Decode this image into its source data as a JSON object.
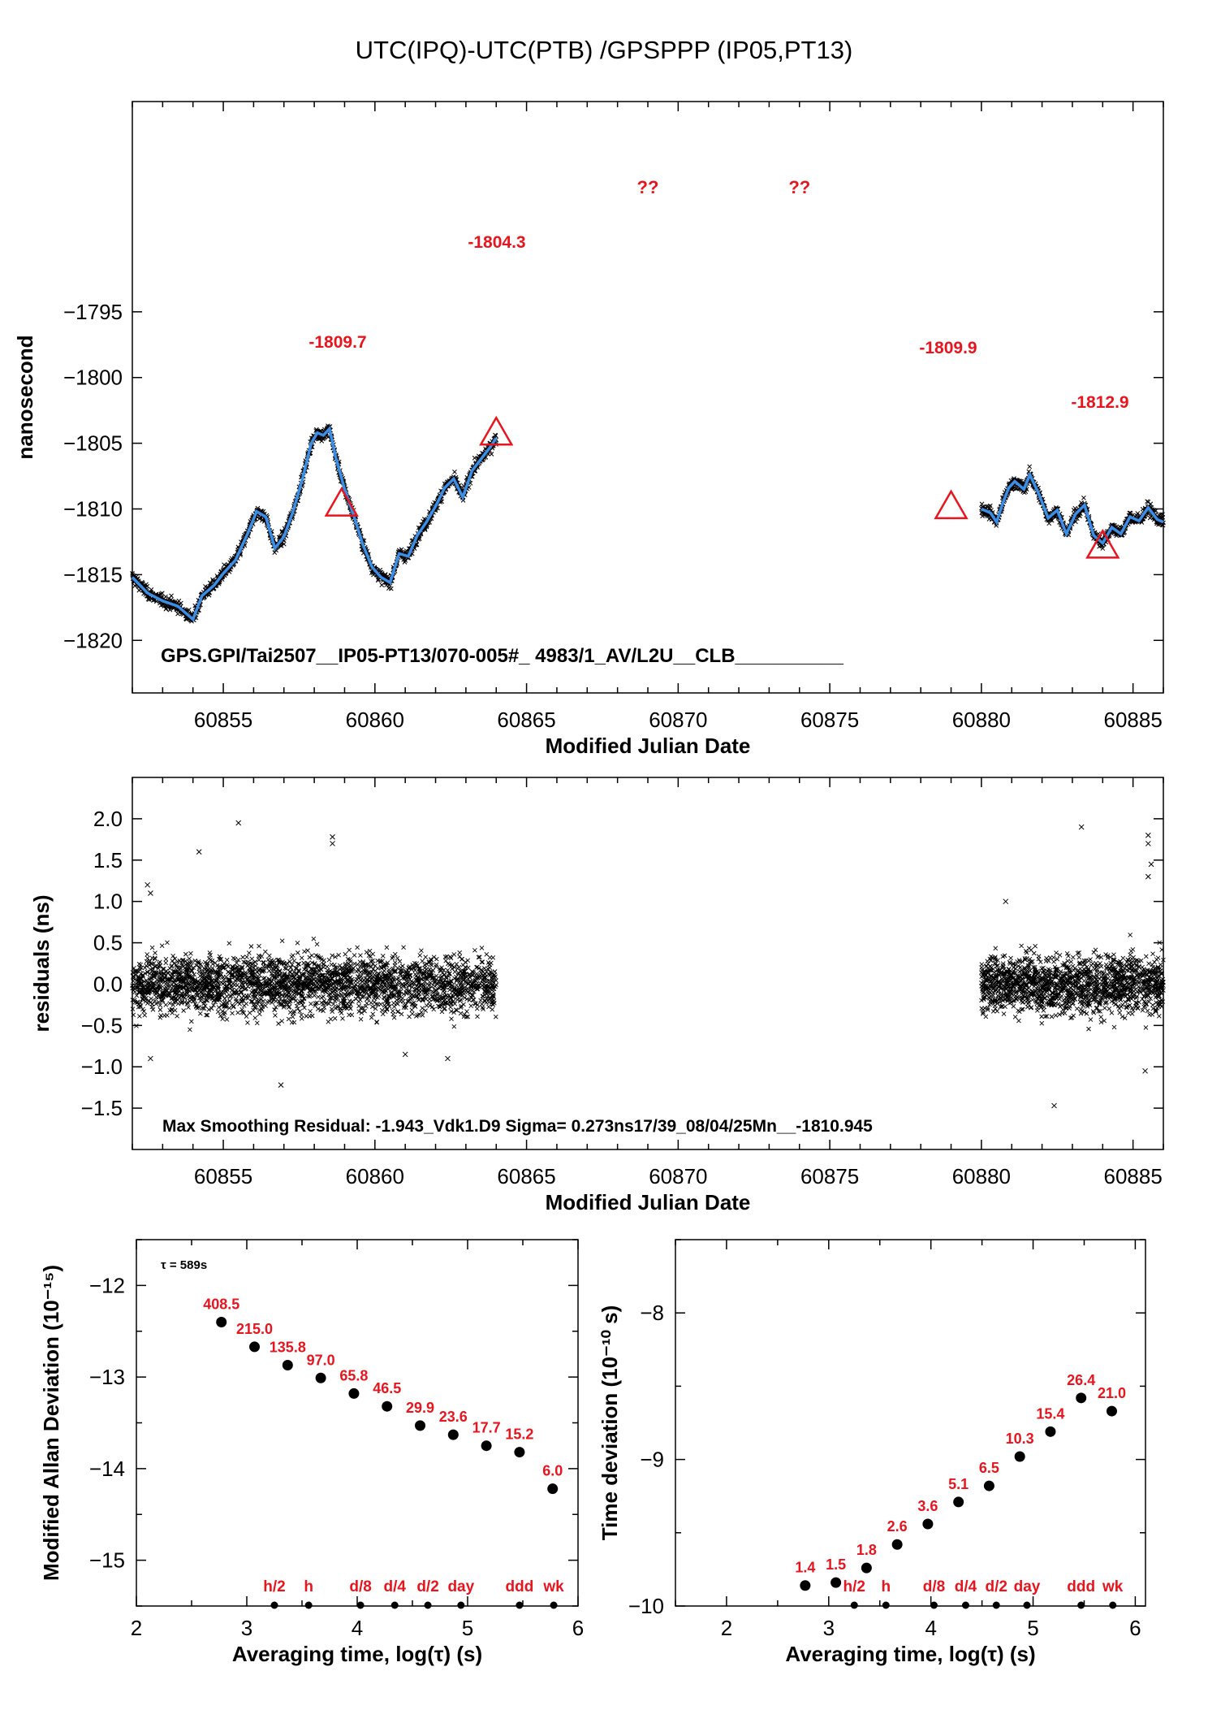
{
  "page": {
    "title": "UTC(IPQ)-UTC(PTB)  /GPSPPP  (IP05,PT13)"
  },
  "colors": {
    "smooth_line": "#3a8ee6",
    "markers": "#e8141e",
    "points": "#000000"
  },
  "chart_data": [
    {
      "id": "main",
      "type": "scatter",
      "xlabel": "Modified Julian Date",
      "ylabel": "nanosecond",
      "xlim": [
        60852,
        60886
      ],
      "ylim": [
        -1824,
        -1779
      ],
      "xticks": [
        60855,
        60860,
        60865,
        60870,
        60875,
        60880,
        60885
      ],
      "yticks": [
        -1795,
        -1800,
        -1805,
        -1810,
        -1815,
        -1820
      ],
      "info_text": "GPS.GPI/Tai2507__IP05-PT13/070-005#_  4983/1_AV/L2U__CLB__________",
      "smoothed_trend": [
        [
          60852.0,
          -1815.2
        ],
        [
          60852.5,
          -1816.4
        ],
        [
          60853.0,
          -1817.0
        ],
        [
          60853.5,
          -1817.4
        ],
        [
          60854.0,
          -1818.4
        ],
        [
          60854.3,
          -1816.6
        ],
        [
          60854.7,
          -1815.8
        ],
        [
          60855.0,
          -1814.9
        ],
        [
          60855.4,
          -1813.9
        ],
        [
          60855.8,
          -1811.9
        ],
        [
          60856.1,
          -1810.2
        ],
        [
          60856.4,
          -1810.6
        ],
        [
          60856.7,
          -1813.0
        ],
        [
          60857.0,
          -1812.1
        ],
        [
          60857.3,
          -1810.2
        ],
        [
          60857.6,
          -1807.8
        ],
        [
          60857.9,
          -1805.0
        ],
        [
          60858.1,
          -1804.2
        ],
        [
          60858.3,
          -1804.4
        ],
        [
          60858.5,
          -1803.9
        ],
        [
          60858.7,
          -1806.0
        ],
        [
          60859.0,
          -1808.5
        ],
        [
          60859.3,
          -1810.5
        ],
        [
          60859.6,
          -1812.7
        ],
        [
          60859.9,
          -1814.4
        ],
        [
          60860.2,
          -1815.2
        ],
        [
          60860.5,
          -1815.6
        ],
        [
          60860.8,
          -1813.4
        ],
        [
          60861.1,
          -1813.6
        ],
        [
          60861.4,
          -1812.0
        ],
        [
          60861.7,
          -1811.0
        ],
        [
          60862.0,
          -1809.8
        ],
        [
          60862.3,
          -1808.4
        ],
        [
          60862.6,
          -1807.7
        ],
        [
          60862.9,
          -1809.1
        ],
        [
          60863.2,
          -1807.1
        ],
        [
          60863.5,
          -1806.2
        ],
        [
          60863.8,
          -1805.3
        ],
        [
          60864.0,
          -1804.6
        ]
      ],
      "smoothed_trend_2": [
        [
          60880.0,
          -1810.0
        ],
        [
          60880.3,
          -1810.3
        ],
        [
          60880.5,
          -1811.0
        ],
        [
          60880.7,
          -1809.6
        ],
        [
          60880.9,
          -1808.4
        ],
        [
          60881.1,
          -1807.9
        ],
        [
          60881.4,
          -1808.5
        ],
        [
          60881.6,
          -1807.4
        ],
        [
          60881.9,
          -1808.9
        ],
        [
          60882.2,
          -1810.7
        ],
        [
          60882.5,
          -1810.1
        ],
        [
          60882.8,
          -1811.9
        ],
        [
          60883.1,
          -1810.4
        ],
        [
          60883.4,
          -1809.7
        ],
        [
          60883.7,
          -1812.0
        ],
        [
          60884.0,
          -1812.6
        ],
        [
          60884.3,
          -1811.4
        ],
        [
          60884.6,
          -1811.9
        ],
        [
          60884.9,
          -1810.6
        ],
        [
          60885.2,
          -1810.9
        ],
        [
          60885.5,
          -1809.9
        ],
        [
          60885.8,
          -1810.8
        ],
        [
          60886.0,
          -1811.0
        ]
      ],
      "markers": [
        {
          "x": 60858.9,
          "y": -1809.7,
          "label": "-1809.7"
        },
        {
          "x": 60864.0,
          "y": -1804.3,
          "label": "-1804.3"
        },
        {
          "x": 60879.0,
          "y": -1809.9,
          "label": "-1809.9"
        },
        {
          "x": 60884.0,
          "y": -1812.9,
          "label": "-1812.9"
        }
      ],
      "unknown_labels": [
        {
          "x": 60869,
          "text": "??"
        },
        {
          "x": 60874,
          "text": "??"
        }
      ]
    },
    {
      "id": "residuals",
      "type": "scatter",
      "xlabel": "Modified Julian Date",
      "ylabel": "residuals (ns)",
      "xlim": [
        60852,
        60886
      ],
      "ylim": [
        -2.0,
        2.5
      ],
      "xticks": [
        60855,
        60860,
        60865,
        60870,
        60875,
        60880,
        60885
      ],
      "yticks": [
        2.0,
        1.5,
        1.0,
        0.5,
        0.0,
        -0.5,
        -1.0,
        -1.5
      ],
      "info_text": "Max Smoothing Residual: -1.943_Vdk1.D9  Sigma= 0.273ns17/39_08/04/25Mn__-1810.945",
      "sigma": 0.273,
      "segments": [
        [
          60852.0,
          60864.0
        ],
        [
          60880.0,
          60886.0
        ]
      ],
      "outliers": [
        [
          60852.5,
          1.2
        ],
        [
          60852.6,
          1.1
        ],
        [
          60854.2,
          1.6
        ],
        [
          60855.5,
          1.95
        ],
        [
          60858.6,
          1.78
        ],
        [
          60858.6,
          1.7
        ],
        [
          60880.8,
          1.0
        ],
        [
          60883.3,
          1.9
        ],
        [
          60885.5,
          1.8
        ],
        [
          60885.5,
          1.7
        ],
        [
          60885.6,
          1.45
        ],
        [
          60885.5,
          1.3
        ],
        [
          60856.9,
          -1.22
        ],
        [
          60882.4,
          -1.47
        ],
        [
          60852.6,
          -0.9
        ],
        [
          60885.4,
          -1.05
        ],
        [
          60861.0,
          -0.85
        ],
        [
          60862.4,
          -0.9
        ]
      ]
    },
    {
      "id": "mdev",
      "type": "scatter",
      "xlabel": "Averaging time, log(τ) (s)",
      "ylabel": "Modified Allan Deviation (10⁻¹⁵)",
      "xlim": [
        2,
        6
      ],
      "ylim": [
        -15.5,
        -11.5
      ],
      "xticks": [
        2,
        3,
        4,
        5,
        6
      ],
      "yticks": [
        -12,
        -13,
        -14,
        -15
      ],
      "tau_note": "τ = 589s",
      "points": [
        {
          "x": 2.77,
          "y": -12.4,
          "label": "408.5"
        },
        {
          "x": 3.07,
          "y": -12.67,
          "label": "215.0"
        },
        {
          "x": 3.37,
          "y": -12.87,
          "label": "135.8"
        },
        {
          "x": 3.67,
          "y": -13.01,
          "label": "97.0"
        },
        {
          "x": 3.97,
          "y": -13.18,
          "label": "65.8"
        },
        {
          "x": 4.27,
          "y": -13.32,
          "label": "46.5"
        },
        {
          "x": 4.57,
          "y": -13.53,
          "label": "29.9"
        },
        {
          "x": 4.87,
          "y": -13.63,
          "label": "23.6"
        },
        {
          "x": 5.17,
          "y": -13.75,
          "label": "17.7"
        },
        {
          "x": 5.47,
          "y": -13.82,
          "label": "15.2"
        },
        {
          "x": 5.77,
          "y": -14.22,
          "label": "6.0"
        }
      ],
      "time_marks": [
        {
          "x": 3.25,
          "label": "h/2"
        },
        {
          "x": 3.56,
          "label": "h"
        },
        {
          "x": 4.03,
          "label": "d/8"
        },
        {
          "x": 4.34,
          "label": "d/4"
        },
        {
          "x": 4.64,
          "label": "d/2"
        },
        {
          "x": 4.94,
          "label": "day"
        },
        {
          "x": 5.47,
          "label": "ddd"
        },
        {
          "x": 5.78,
          "label": "wk"
        }
      ]
    },
    {
      "id": "tdev",
      "type": "scatter",
      "xlabel": "Averaging time, log(τ) (s)",
      "ylabel": "Time deviation (10⁻¹⁰ s)",
      "xlim": [
        1.5,
        6.1
      ],
      "ylim": [
        -10,
        -7.5
      ],
      "xticks": [
        2,
        3,
        4,
        5,
        6
      ],
      "yticks": [
        -8,
        -9,
        -10
      ],
      "points": [
        {
          "x": 2.77,
          "y": -9.86,
          "label": "1.4"
        },
        {
          "x": 3.07,
          "y": -9.84,
          "label": "1.5"
        },
        {
          "x": 3.37,
          "y": -9.74,
          "label": "1.8"
        },
        {
          "x": 3.67,
          "y": -9.58,
          "label": "2.6"
        },
        {
          "x": 3.97,
          "y": -9.44,
          "label": "3.6"
        },
        {
          "x": 4.27,
          "y": -9.29,
          "label": "5.1"
        },
        {
          "x": 4.57,
          "y": -9.18,
          "label": "6.5"
        },
        {
          "x": 4.87,
          "y": -8.98,
          "label": "10.3"
        },
        {
          "x": 5.17,
          "y": -8.81,
          "label": "15.4"
        },
        {
          "x": 5.47,
          "y": -8.58,
          "label": "26.4"
        },
        {
          "x": 5.77,
          "y": -8.67,
          "label": "21.0"
        }
      ],
      "time_marks": [
        {
          "x": 3.25,
          "label": "h/2"
        },
        {
          "x": 3.56,
          "label": "h"
        },
        {
          "x": 4.03,
          "label": "d/8"
        },
        {
          "x": 4.34,
          "label": "d/4"
        },
        {
          "x": 4.64,
          "label": "d/2"
        },
        {
          "x": 4.94,
          "label": "day"
        },
        {
          "x": 5.47,
          "label": "ddd"
        },
        {
          "x": 5.78,
          "label": "wk"
        }
      ]
    }
  ]
}
